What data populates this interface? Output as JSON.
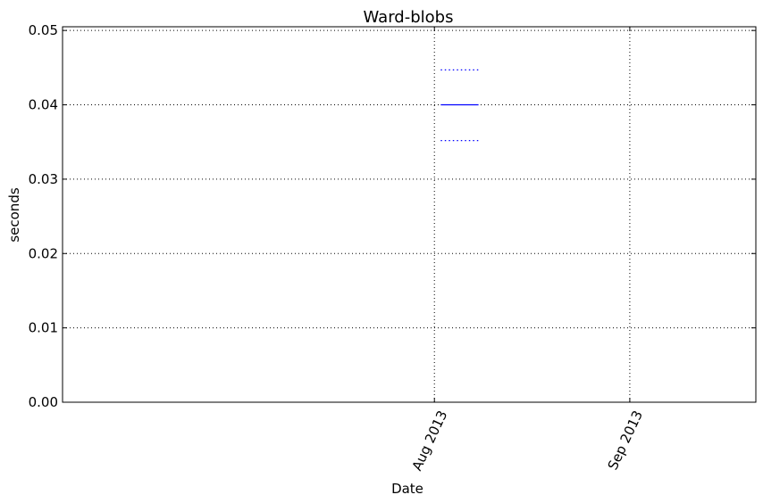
{
  "chart_data": {
    "type": "line",
    "title": "Ward-blobs",
    "xlabel": "Date",
    "ylabel": "seconds",
    "ylim": [
      0,
      0.0505
    ],
    "xlim": [
      "2013-06-03",
      "2013-09-21"
    ],
    "y_ticks": [
      {
        "value": 0.0,
        "label": "0.00"
      },
      {
        "value": 0.01,
        "label": "0.01"
      },
      {
        "value": 0.02,
        "label": "0.02"
      },
      {
        "value": 0.03,
        "label": "0.03"
      },
      {
        "value": 0.04,
        "label": "0.04"
      },
      {
        "value": 0.05,
        "label": "0.05"
      }
    ],
    "x_ticks": [
      {
        "date": "2013-08-01",
        "label": "Aug 2013"
      },
      {
        "date": "2013-09-01",
        "label": "Sep 2013"
      }
    ],
    "grid": true,
    "series": [
      {
        "role": "mean",
        "style": "solid",
        "color": "#0000ff",
        "x": [
          "2013-08-02",
          "2013-08-08"
        ],
        "y": [
          0.04,
          0.04
        ]
      },
      {
        "role": "upper",
        "style": "dotted",
        "color": "#0000ff",
        "x": [
          "2013-08-02",
          "2013-08-08"
        ],
        "y": [
          0.0447,
          0.0447
        ]
      },
      {
        "role": "lower",
        "style": "dotted",
        "color": "#0000ff",
        "x": [
          "2013-08-02",
          "2013-08-08"
        ],
        "y": [
          0.0352,
          0.0352
        ]
      }
    ]
  }
}
